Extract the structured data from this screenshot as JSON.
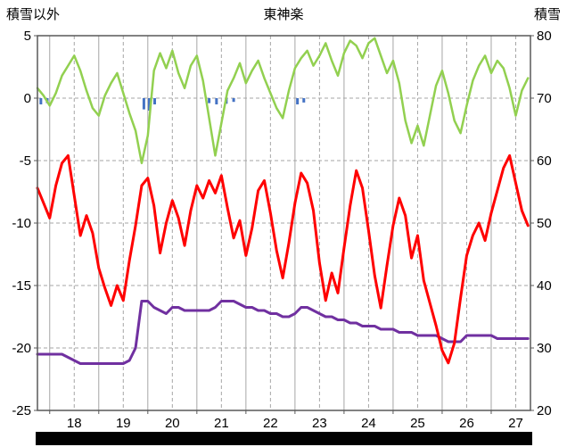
{
  "header": {
    "left_axis_title": "積雪以外",
    "chart_title": "東神楽",
    "right_axis_title": "積雪"
  },
  "chart_data": {
    "type": "line",
    "title": "東神楽",
    "style": {
      "grid_color": "#A6A6A6",
      "border_color": "#595959",
      "text_color": "#000000",
      "background": "#FFFFFF"
    },
    "left_axis": {
      "label": "積雪以外",
      "min": -25,
      "max": 5,
      "ticks": [
        5,
        0,
        -5,
        -10,
        -15,
        -20,
        -25
      ]
    },
    "right_axis": {
      "label": "積雪",
      "min": 20,
      "max": 80,
      "ticks": [
        80,
        70,
        60,
        50,
        40,
        30,
        20
      ]
    },
    "x_axis": {
      "min": 17.25,
      "max": 27.3,
      "tick_labels": [
        "18",
        "19",
        "20",
        "21",
        "22",
        "23",
        "24",
        "25",
        "26",
        "27"
      ],
      "label_positions": [
        18,
        19,
        20,
        21,
        22,
        23,
        24,
        25,
        26,
        27
      ],
      "solid_gridlines": [
        17.5,
        18.5,
        19.5,
        20.5,
        21.5,
        22.5,
        23.5,
        24.5,
        25.5,
        26.5
      ],
      "dashed_gridlines": [
        18,
        19,
        20,
        21,
        22,
        23,
        24,
        25,
        26,
        27
      ]
    },
    "x_start": 17.25,
    "x_step": 0.125,
    "series": [
      {
        "name": "green-temperature-line",
        "axis": "left",
        "color": "#92D050",
        "width": 2.5,
        "values": [
          0.8,
          0.2,
          -0.6,
          0.4,
          1.8,
          2.6,
          3.4,
          2.2,
          0.6,
          -0.8,
          -1.4,
          0.2,
          1.2,
          2.0,
          0.4,
          -1.2,
          -2.6,
          -5.2,
          -3.0,
          2.2,
          3.6,
          2.4,
          3.8,
          2.0,
          0.8,
          2.6,
          3.4,
          1.4,
          -1.6,
          -4.6,
          -2.0,
          0.6,
          1.6,
          2.8,
          1.2,
          2.2,
          3.0,
          1.6,
          0.4,
          -0.8,
          -1.6,
          0.6,
          2.4,
          3.2,
          3.8,
          2.6,
          3.4,
          4.4,
          3.0,
          1.8,
          3.6,
          4.6,
          4.2,
          3.2,
          4.4,
          4.8,
          3.4,
          2.0,
          3.0,
          1.2,
          -1.8,
          -3.6,
          -2.2,
          -3.8,
          -1.4,
          1.0,
          2.2,
          0.4,
          -1.8,
          -2.8,
          -0.6,
          1.4,
          2.6,
          3.4,
          2.0,
          3.0,
          2.4,
          0.8,
          -1.4,
          0.6,
          1.6
        ]
      },
      {
        "name": "purple-snow-depth-line",
        "axis": "right",
        "color": "#7030A0",
        "width": 3,
        "values": [
          29,
          29,
          29,
          29,
          29,
          28.5,
          28,
          27.5,
          27.5,
          27.5,
          27.5,
          27.5,
          27.5,
          27.5,
          27.5,
          28,
          30,
          37.5,
          37.5,
          36.5,
          36,
          35.5,
          36.5,
          36.5,
          36,
          36,
          36,
          36,
          36,
          36.5,
          37.5,
          37.5,
          37.5,
          37,
          36.5,
          36.5,
          36,
          36,
          35.5,
          35.5,
          35,
          35,
          35.5,
          36.5,
          36.5,
          36,
          35.5,
          35,
          35,
          34.5,
          34.5,
          34,
          34,
          33.5,
          33.5,
          33.5,
          33,
          33,
          33,
          32.5,
          32.5,
          32.5,
          32,
          32,
          32,
          32,
          31.5,
          31,
          31,
          31,
          32,
          32,
          32,
          32,
          32,
          31.5,
          31.5,
          31.5,
          31.5,
          31.5,
          31.5
        ]
      },
      {
        "name": "red-temperature-line",
        "axis": "left",
        "color": "#FF0000",
        "width": 3,
        "values": [
          -7.2,
          -8.4,
          -9.6,
          -7.0,
          -5.2,
          -4.6,
          -7.8,
          -11.0,
          -9.4,
          -10.8,
          -13.6,
          -15.2,
          -16.6,
          -15.0,
          -16.2,
          -13.0,
          -10.2,
          -7.0,
          -6.4,
          -8.6,
          -12.4,
          -10.0,
          -8.2,
          -9.6,
          -11.8,
          -9.0,
          -7.0,
          -8.0,
          -6.6,
          -7.6,
          -6.2,
          -8.8,
          -11.2,
          -9.8,
          -12.6,
          -10.4,
          -7.4,
          -6.6,
          -9.2,
          -12.2,
          -14.4,
          -11.6,
          -8.4,
          -6.0,
          -6.8,
          -9.0,
          -13.2,
          -16.2,
          -14.0,
          -15.6,
          -12.0,
          -8.6,
          -5.8,
          -7.2,
          -10.6,
          -14.2,
          -16.8,
          -13.4,
          -10.2,
          -8.0,
          -9.4,
          -12.8,
          -11.0,
          -14.6,
          -16.4,
          -18.2,
          -20.2,
          -21.2,
          -19.6,
          -16.0,
          -12.6,
          -11.0,
          -10.0,
          -11.4,
          -9.2,
          -7.4,
          -5.6,
          -4.6,
          -6.8,
          -9.0,
          -10.2
        ]
      }
    ],
    "bars": {
      "name": "blue-precipitation-bars",
      "axis": "left",
      "color": "#4472C4",
      "baseline": 0,
      "points": [
        [
          17.32,
          0.5
        ],
        [
          17.45,
          0.4
        ],
        [
          19.42,
          0.9
        ],
        [
          19.53,
          1.0
        ],
        [
          19.64,
          0.5
        ],
        [
          20.75,
          0.4
        ],
        [
          20.9,
          0.5
        ],
        [
          21.1,
          0.45
        ],
        [
          21.25,
          0.3
        ],
        [
          22.55,
          0.5
        ],
        [
          22.68,
          0.35
        ]
      ]
    }
  },
  "scrollbar": {
    "color": "#000000"
  }
}
